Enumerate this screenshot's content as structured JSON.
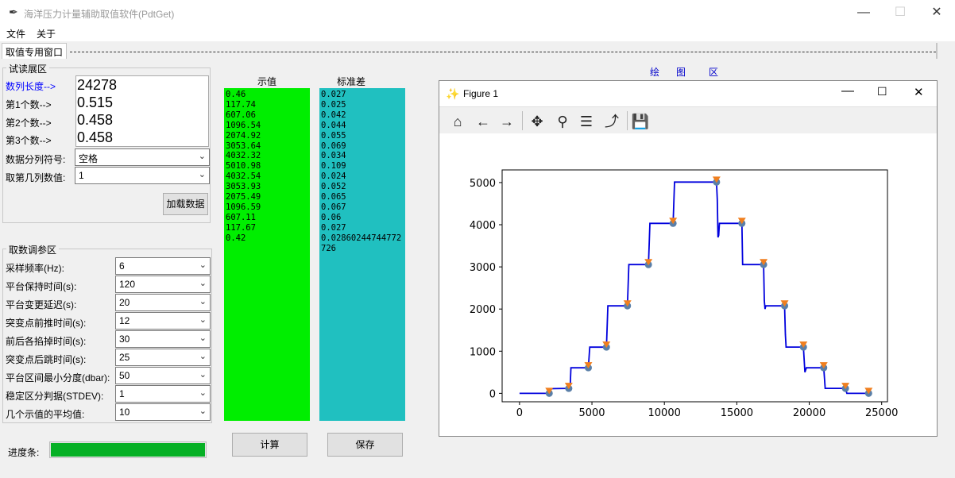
{
  "window": {
    "title": "海洋压力计量辅助取值软件(PdtGet)",
    "minimize": "—",
    "maximize": "☐",
    "close": "✕"
  },
  "menu": {
    "file": "文件",
    "about": "关于"
  },
  "tab": {
    "label": "取值专用窗口"
  },
  "preview": {
    "group_label": "试读展区",
    "length_label": "数列长度-->",
    "length_value": "24278",
    "n1_label": "第1个数-->",
    "n1_value": "0.515",
    "n2_label": "第2个数-->",
    "n2_value": "0.458",
    "n3_label": "第3个数-->",
    "n3_value": "0.458",
    "separator_label": "数据分列符号:",
    "separator_value": "空格",
    "column_label": "取第几列数值:",
    "column_value": "1",
    "load_button": "加载数据"
  },
  "params": {
    "group_label": "取数调参区",
    "rows": [
      {
        "label": "采样频率(Hz):",
        "value": "6"
      },
      {
        "label": "平台保持时间(s):",
        "value": "120"
      },
      {
        "label": "平台变更延迟(s):",
        "value": "20"
      },
      {
        "label": "突变点前推时间(s):",
        "value": "12"
      },
      {
        "label": "前后各掐掉时间(s):",
        "value": "30"
      },
      {
        "label": "突变点后跳时间(s):",
        "value": "25"
      },
      {
        "label": "平台区间最小分度(dbar):",
        "value": "50"
      },
      {
        "label": "稳定区分判据(STDEV):",
        "value": "1"
      },
      {
        "label": "几个示值的平均值:",
        "value": "10"
      }
    ],
    "progress_label": "进度条:",
    "progress": 1.0
  },
  "results": {
    "value_header": "示值",
    "std_header": "标准差",
    "values_text": "0.46\n117.74\n607.06\n1096.54\n2074.92\n3053.64\n4032.32\n5010.98\n4032.54\n3053.93\n2075.49\n1096.59\n607.11\n117.67\n0.42",
    "std_text": "0.027\n0.025\n0.042\n0.044\n0.055\n0.069\n0.034\n0.109\n0.024\n0.052\n0.065\n0.067\n0.06\n0.027\n0.02860244744772726",
    "calc_button": "计算",
    "save_button": "保存",
    "value_color": "#00ee00",
    "std_color": "#20c0c0"
  },
  "plot_area": {
    "label1": "绘",
    "label2": "图",
    "label3": "区"
  },
  "figure": {
    "title": "Figure 1",
    "tools": [
      "home-icon",
      "back-icon",
      "forward-icon",
      "pan-icon",
      "zoom-icon",
      "configure-icon",
      "edit-curve-icon",
      "save-icon"
    ]
  },
  "chart_data": {
    "type": "line",
    "xlim": [
      -1200,
      25400
    ],
    "ylim": [
      -200,
      5300
    ],
    "xticks": [
      0,
      5000,
      10000,
      15000,
      20000,
      25000
    ],
    "yticks": [
      0,
      1000,
      2000,
      3000,
      4000,
      5000
    ],
    "line_color": "#0000dd",
    "line_points": [
      [
        0,
        0
      ],
      [
        2050,
        0
      ],
      [
        2100,
        60
      ],
      [
        2150,
        110
      ],
      [
        3400,
        118
      ],
      [
        3500,
        180
      ],
      [
        3550,
        607
      ],
      [
        4750,
        607
      ],
      [
        4850,
        1096
      ],
      [
        6000,
        1096
      ],
      [
        6100,
        2075
      ],
      [
        7450,
        2075
      ],
      [
        7550,
        3054
      ],
      [
        8900,
        3054
      ],
      [
        9000,
        4032
      ],
      [
        10600,
        4032
      ],
      [
        10700,
        5011
      ],
      [
        13600,
        5011
      ],
      [
        13650,
        4600
      ],
      [
        13700,
        3700
      ],
      [
        13750,
        3750
      ],
      [
        13800,
        4032
      ],
      [
        15350,
        4032
      ],
      [
        15400,
        3054
      ],
      [
        16850,
        3054
      ],
      [
        16900,
        2200
      ],
      [
        16950,
        2000
      ],
      [
        17000,
        2075
      ],
      [
        18300,
        2075
      ],
      [
        18350,
        1400
      ],
      [
        18400,
        1097
      ],
      [
        19600,
        1097
      ],
      [
        19700,
        500
      ],
      [
        19800,
        607
      ],
      [
        21000,
        607
      ],
      [
        21100,
        118
      ],
      [
        22500,
        118
      ],
      [
        22600,
        0
      ],
      [
        24278,
        0
      ]
    ],
    "series": [
      {
        "marker": "circle",
        "color": "#5a7fa8",
        "x": [
          2050,
          3400,
          4750,
          6000,
          7450,
          8900,
          10600,
          13600,
          15350,
          16850,
          18300,
          19600,
          21000,
          22500,
          24100
        ],
        "y": [
          0.46,
          117.74,
          607.06,
          1096.54,
          2074.92,
          3053.64,
          4032.32,
          5010.98,
          4032.54,
          3053.93,
          2075.49,
          1096.59,
          607.11,
          117.67,
          0.42
        ]
      },
      {
        "marker": "triangle-down",
        "color": "#f07f1f",
        "x": [
          2050,
          3400,
          4750,
          6000,
          7450,
          8900,
          10600,
          13600,
          15350,
          16850,
          18300,
          19600,
          21000,
          22500,
          24100
        ],
        "y": [
          0.46,
          117.74,
          607.06,
          1096.54,
          2074.92,
          3053.64,
          4032.32,
          5010.98,
          4032.54,
          3053.93,
          2075.49,
          1096.59,
          607.11,
          117.67,
          0.42
        ]
      }
    ]
  }
}
